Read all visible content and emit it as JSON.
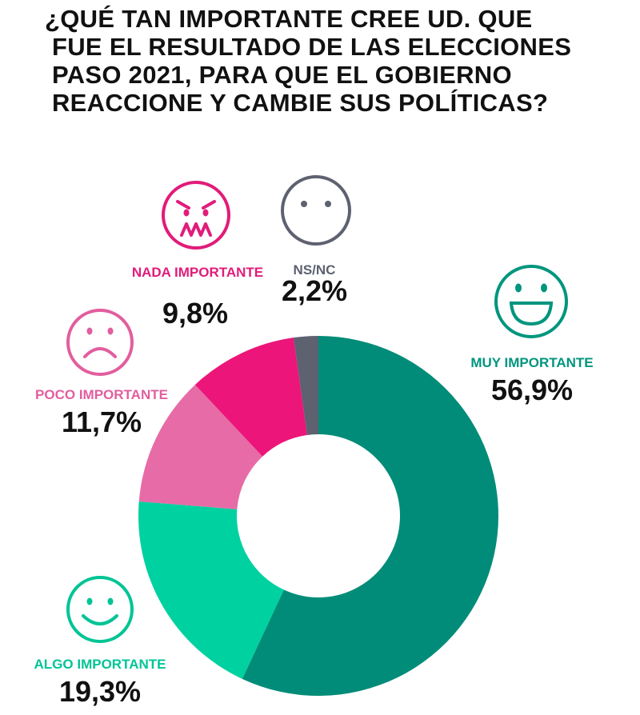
{
  "title_lines": [
    "¿QUÉ TAN IMPORTANTE CREE UD. QUE",
    "FUE EL RESULTADO DE LAS ELECCIONES",
    "PASO 2021, PARA QUE EL GOBIERNO",
    "REACCIONE Y CAMBIE SUS POLÍTICAS?"
  ],
  "chart_data": {
    "type": "pie",
    "variant": "donut",
    "title": "¿QUÉ TAN IMPORTANTE CREE UD. QUE FUE EL RESULTADO DE LAS ELECCIONES PASO 2021, PARA QUE EL GOBIERNO REACCIONE Y CAMBIE SUS POLÍTICAS?",
    "unit": "%",
    "slices": [
      {
        "key": "muy",
        "label": "MUY IMPORTANTE",
        "value": 56.9,
        "value_label": "56,9%",
        "color": "#008C78",
        "label_color": "#00957E",
        "icon": "big-smile-face-icon"
      },
      {
        "key": "algo",
        "label": "ALGO IMPORTANTE",
        "value": 19.3,
        "value_label": "19,3%",
        "color": "#00D1A0",
        "label_color": "#00C496",
        "icon": "smile-face-icon"
      },
      {
        "key": "poco",
        "label": "POCO IMPORTANTE",
        "value": 11.7,
        "value_label": "11,7%",
        "color": "#E76BA6",
        "label_color": "#E25E9E",
        "icon": "sad-face-icon"
      },
      {
        "key": "nada",
        "label": "NADA IMPORTANTE",
        "value": 9.8,
        "value_label": "9,8%",
        "color": "#EC157A",
        "label_color": "#E11C7A",
        "icon": "angry-face-icon"
      },
      {
        "key": "nsnc",
        "label": "NS/NC",
        "value": 2.2,
        "value_label": "2,2%",
        "color": "#5D6170",
        "label_color": "#5D6170",
        "icon": "neutral-face-icon"
      }
    ]
  }
}
